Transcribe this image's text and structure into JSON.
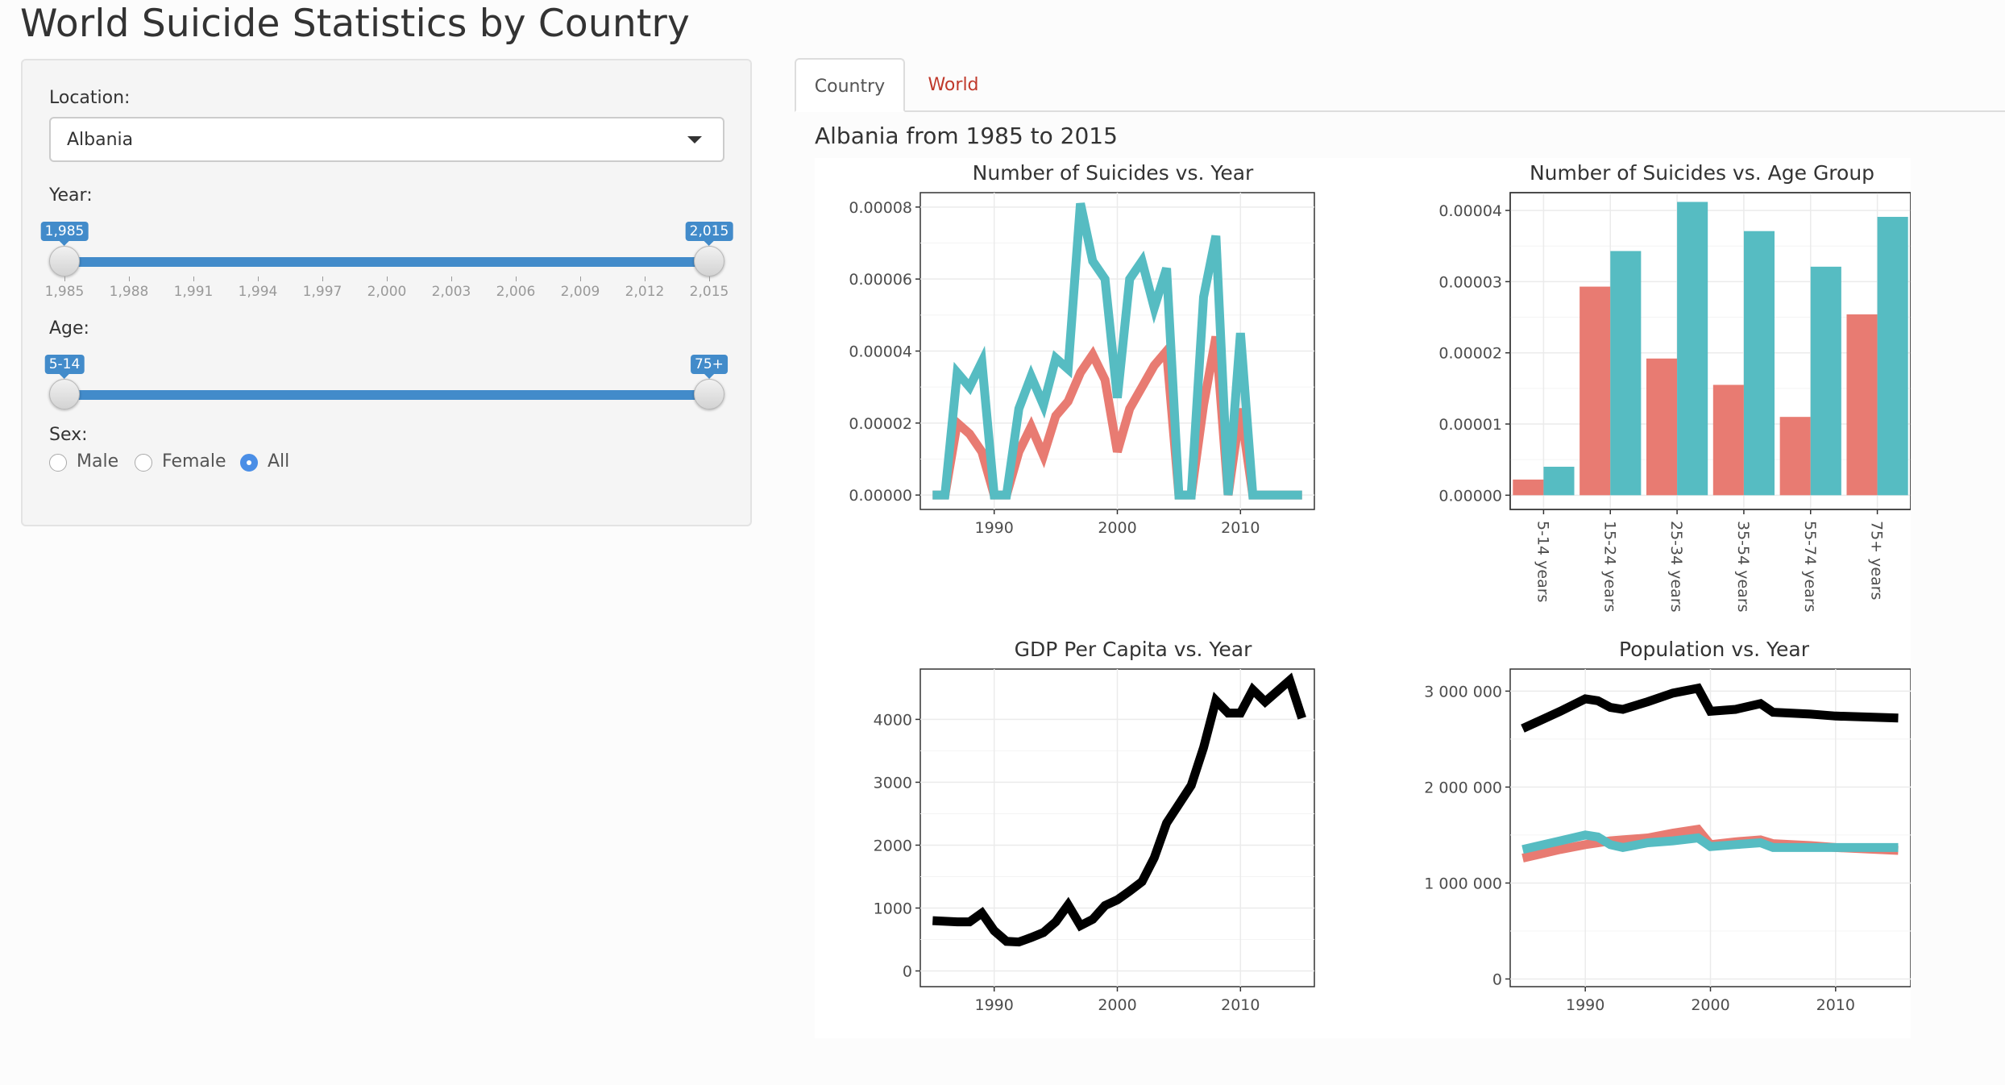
{
  "app": {
    "title": "World Suicide Statistics by Country"
  },
  "sidebar": {
    "location": {
      "label": "Location:",
      "value": "Albania"
    },
    "year": {
      "label": "Year:",
      "min_label": "1,985",
      "max_label": "2,015",
      "selected_range": [
        1985,
        2015
      ],
      "ticks": [
        "1,985",
        "1,988",
        "1,991",
        "1,994",
        "1,997",
        "2,000",
        "2,003",
        "2,006",
        "2,009",
        "2,012",
        "2,015"
      ]
    },
    "age": {
      "label": "Age:",
      "min_label": "5-14",
      "max_label": "75+"
    },
    "sex": {
      "label": "Sex:",
      "options": [
        "Male",
        "Female",
        "All"
      ],
      "selected": "All"
    }
  },
  "tabs": [
    {
      "label": "Country",
      "active": true
    },
    {
      "label": "World",
      "active": false
    }
  ],
  "main": {
    "subheading": "Albania from 1985 to 2015"
  },
  "colors": {
    "series_a": "#e87b72",
    "series_b": "#56bcc2",
    "total": "#000000",
    "link": "#c0392b",
    "accent": "#428bca"
  },
  "chart_data": [
    {
      "type": "line",
      "title": "Number of Suicides vs. Year",
      "xlabel": "",
      "ylabel": "",
      "xlim": [
        1984,
        2016
      ],
      "ylim": [
        -4e-06,
        8.4e-05
      ],
      "xticks": [
        1990,
        2000,
        2010
      ],
      "yticks": [
        "0.00000",
        "0.00002",
        "0.00004",
        "0.00006",
        "0.00008"
      ],
      "yticks_values": [
        0,
        2e-05,
        4e-05,
        6e-05,
        8e-05
      ],
      "grid": true,
      "series": [
        {
          "color": "#e87b72",
          "x": [
            1985,
            1986,
            1987,
            1988,
            1989,
            1990,
            1991,
            1992,
            1993,
            1994,
            1995,
            1996,
            1997,
            1998,
            1999,
            2000,
            2001,
            2002,
            2003,
            2004,
            2005,
            2006,
            2007,
            2008,
            2009,
            2010,
            2011,
            2012,
            2013,
            2014,
            2015
          ],
          "y": [
            0,
            0,
            2e-05,
            1.7e-05,
            1.2e-05,
            0,
            0,
            1.2e-05,
            1.9e-05,
            1.1e-05,
            2.2e-05,
            2.6e-05,
            3.4e-05,
            3.9e-05,
            3.2e-05,
            1.2e-05,
            2.4e-05,
            3e-05,
            3.6e-05,
            4e-05,
            0,
            0,
            2.5e-05,
            4.4e-05,
            0,
            2.4e-05,
            0,
            0,
            0,
            0,
            0
          ]
        },
        {
          "color": "#56bcc2",
          "x": [
            1985,
            1986,
            1987,
            1988,
            1989,
            1990,
            1991,
            1992,
            1993,
            1994,
            1995,
            1996,
            1997,
            1998,
            1999,
            2000,
            2001,
            2002,
            2003,
            2004,
            2005,
            2006,
            2007,
            2008,
            2009,
            2010,
            2011,
            2012,
            2013,
            2014,
            2015
          ],
          "y": [
            0,
            0,
            3.4e-05,
            3e-05,
            3.7e-05,
            0,
            0,
            2.4e-05,
            3.3e-05,
            2.5e-05,
            3.8e-05,
            3.5e-05,
            8.1e-05,
            6.5e-05,
            6e-05,
            2.7e-05,
            6e-05,
            6.5e-05,
            5.2e-05,
            6.3e-05,
            0,
            0,
            5.5e-05,
            7.2e-05,
            0,
            4.5e-05,
            0,
            0,
            0,
            0,
            0
          ]
        }
      ]
    },
    {
      "type": "bar",
      "title": "Number of Suicides vs. Age Group",
      "xlabel": "",
      "ylabel": "",
      "ylim": [
        -2e-06,
        4.25e-05
      ],
      "yticks": [
        "0.00000",
        "0.00001",
        "0.00002",
        "0.00003",
        "0.00004"
      ],
      "yticks_values": [
        0,
        1e-05,
        2e-05,
        3e-05,
        4e-05
      ],
      "grid": true,
      "categories": [
        "5-14 years",
        "15-24 years",
        "25-34 years",
        "35-54 years",
        "55-74 years",
        "75+ years"
      ],
      "series": [
        {
          "color": "#e87b72",
          "values": [
            2.2e-06,
            2.93e-05,
            1.92e-05,
            1.55e-05,
            1.1e-05,
            2.54e-05
          ]
        },
        {
          "color": "#56bcc2",
          "values": [
            4e-06,
            3.43e-05,
            4.12e-05,
            3.71e-05,
            3.21e-05,
            3.91e-05
          ]
        }
      ]
    },
    {
      "type": "line",
      "title": "GDP Per Capita vs. Year",
      "xlabel": "",
      "ylabel": "",
      "xlim": [
        1984,
        2016
      ],
      "ylim": [
        -250,
        4800
      ],
      "xticks": [
        1990,
        2000,
        2010
      ],
      "yticks": [
        "0",
        "1000",
        "2000",
        "3000",
        "4000"
      ],
      "yticks_values": [
        0,
        1000,
        2000,
        3000,
        4000
      ],
      "grid": true,
      "series": [
        {
          "color": "#000000",
          "x": [
            1985,
            1986,
            1987,
            1988,
            1989,
            1990,
            1991,
            1992,
            1993,
            1994,
            1995,
            1996,
            1997,
            1998,
            1999,
            2000,
            2001,
            2002,
            2003,
            2004,
            2005,
            2006,
            2007,
            2008,
            2009,
            2010,
            2011,
            2012,
            2013,
            2014,
            2015
          ],
          "y": [
            800,
            790,
            780,
            780,
            920,
            640,
            470,
            460,
            530,
            610,
            780,
            1050,
            720,
            820,
            1040,
            1130,
            1270,
            1420,
            1800,
            2350,
            2650,
            2950,
            3550,
            4300,
            4100,
            4100,
            4470,
            4280,
            4450,
            4620,
            4020
          ]
        }
      ]
    },
    {
      "type": "line",
      "title": "Population vs. Year",
      "xlabel": "",
      "ylabel": "",
      "xlim": [
        1984,
        2016
      ],
      "ylim": [
        -80000,
        3230000
      ],
      "xticks": [
        1990,
        2000,
        2010
      ],
      "yticks": [
        "0",
        "1 000 000",
        "2 000 000",
        "3 000 000"
      ],
      "yticks_values": [
        0,
        1000000,
        2000000,
        3000000
      ],
      "grid": true,
      "series": [
        {
          "color": "#000000",
          "x": [
            1985,
            1988,
            1990,
            1991,
            1992,
            1993,
            1995,
            1997,
            1999,
            2000,
            2002,
            2004,
            2005,
            2008,
            2010,
            2015
          ],
          "y": [
            2610000,
            2790000,
            2920000,
            2900000,
            2830000,
            2810000,
            2890000,
            2980000,
            3030000,
            2790000,
            2810000,
            2870000,
            2780000,
            2760000,
            2740000,
            2720000
          ]
        },
        {
          "color": "#e87b72",
          "x": [
            1985,
            1988,
            1990,
            1991,
            1992,
            1993,
            1995,
            1997,
            1999,
            2000,
            2002,
            2004,
            2005,
            2008,
            2010,
            2015
          ],
          "y": [
            1260000,
            1350000,
            1400000,
            1420000,
            1440000,
            1450000,
            1470000,
            1520000,
            1560000,
            1400000,
            1430000,
            1450000,
            1410000,
            1390000,
            1370000,
            1340000
          ]
        },
        {
          "color": "#56bcc2",
          "x": [
            1985,
            1988,
            1990,
            1991,
            1992,
            1993,
            1995,
            1997,
            1999,
            2000,
            2002,
            2004,
            2005,
            2008,
            2010,
            2015
          ],
          "y": [
            1350000,
            1440000,
            1500000,
            1480000,
            1400000,
            1370000,
            1420000,
            1440000,
            1470000,
            1380000,
            1400000,
            1420000,
            1370000,
            1370000,
            1370000,
            1370000
          ]
        }
      ]
    }
  ]
}
